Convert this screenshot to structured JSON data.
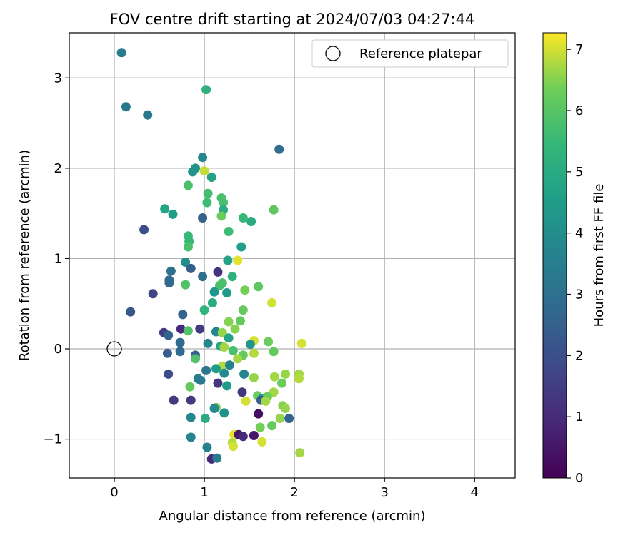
{
  "chart_data": {
    "type": "scatter",
    "title": "FOV centre drift starting at 2024/07/03 04:27:44",
    "xlabel": "Angular distance from reference (arcmin)",
    "ylabel": "Rotation from reference (arcmin)",
    "xlim": [
      -0.5,
      4.45
    ],
    "ylim": [
      -1.43,
      3.5
    ],
    "xticks": [
      0,
      1,
      2,
      3,
      4
    ],
    "yticks": [
      -1,
      0,
      1,
      2,
      3
    ],
    "xtick_labels": [
      "0",
      "1",
      "2",
      "3",
      "4"
    ],
    "ytick_labels": [
      "−1",
      "0",
      "1",
      "2",
      "3"
    ],
    "grid": true,
    "legend": {
      "placement": "top-right",
      "entries": [
        {
          "label": "Reference platepar",
          "marker": "open-circle"
        }
      ]
    },
    "reference_point": {
      "x": 0,
      "y": 0
    },
    "colorbar": {
      "label": "Hours from first FF file",
      "colormap": "viridis",
      "range": [
        0,
        7.27
      ],
      "ticks": [
        0,
        1,
        2,
        3,
        4,
        5,
        6,
        7
      ],
      "tick_labels": [
        "0",
        "1",
        "2",
        "3",
        "4",
        "5",
        "6",
        "7"
      ]
    },
    "points": [
      {
        "x": 0.08,
        "y": 3.28,
        "c": 3.4
      },
      {
        "x": 0.13,
        "y": 2.68,
        "c": 3.3
      },
      {
        "x": 0.37,
        "y": 2.59,
        "c": 3.3
      },
      {
        "x": 1.02,
        "y": 2.87,
        "c": 5.2
      },
      {
        "x": 1.83,
        "y": 2.21,
        "c": 2.9
      },
      {
        "x": 0.98,
        "y": 2.12,
        "c": 3.8
      },
      {
        "x": 0.9,
        "y": 2.0,
        "c": 4.2
      },
      {
        "x": 0.87,
        "y": 1.96,
        "c": 4.2
      },
      {
        "x": 1.0,
        "y": 1.97,
        "c": 6.9
      },
      {
        "x": 1.08,
        "y": 1.9,
        "c": 4.7
      },
      {
        "x": 0.82,
        "y": 1.81,
        "c": 5.8
      },
      {
        "x": 1.04,
        "y": 1.72,
        "c": 5.7
      },
      {
        "x": 1.19,
        "y": 1.67,
        "c": 5.8
      },
      {
        "x": 1.21,
        "y": 1.62,
        "c": 5.8
      },
      {
        "x": 1.03,
        "y": 1.62,
        "c": 5.6
      },
      {
        "x": 0.56,
        "y": 1.55,
        "c": 4.8
      },
      {
        "x": 1.21,
        "y": 1.54,
        "c": 5.0
      },
      {
        "x": 1.77,
        "y": 1.54,
        "c": 6.1
      },
      {
        "x": 0.65,
        "y": 1.49,
        "c": 4.5
      },
      {
        "x": 1.19,
        "y": 1.47,
        "c": 6.3
      },
      {
        "x": 0.98,
        "y": 1.45,
        "c": 2.5
      },
      {
        "x": 1.43,
        "y": 1.45,
        "c": 5.5
      },
      {
        "x": 1.52,
        "y": 1.41,
        "c": 5.0
      },
      {
        "x": 0.33,
        "y": 1.32,
        "c": 2.0
      },
      {
        "x": 1.27,
        "y": 1.3,
        "c": 5.6
      },
      {
        "x": 0.82,
        "y": 1.25,
        "c": 5.5
      },
      {
        "x": 0.83,
        "y": 1.19,
        "c": 5.5
      },
      {
        "x": 0.82,
        "y": 1.13,
        "c": 5.8
      },
      {
        "x": 1.41,
        "y": 1.13,
        "c": 4.6
      },
      {
        "x": 1.37,
        "y": 0.98,
        "c": 7.1
      },
      {
        "x": 1.26,
        "y": 0.98,
        "c": 4.7
      },
      {
        "x": 0.79,
        "y": 0.96,
        "c": 4.0
      },
      {
        "x": 0.85,
        "y": 0.89,
        "c": 2.5
      },
      {
        "x": 0.63,
        "y": 0.86,
        "c": 3.0
      },
      {
        "x": 1.15,
        "y": 0.85,
        "c": 1.2
      },
      {
        "x": 0.98,
        "y": 0.8,
        "c": 3.0
      },
      {
        "x": 1.31,
        "y": 0.8,
        "c": 5.2
      },
      {
        "x": 0.61,
        "y": 0.76,
        "c": 2.8
      },
      {
        "x": 0.61,
        "y": 0.73,
        "c": 2.8
      },
      {
        "x": 1.2,
        "y": 0.73,
        "c": 5.8
      },
      {
        "x": 1.17,
        "y": 0.7,
        "c": 5.8
      },
      {
        "x": 0.79,
        "y": 0.71,
        "c": 5.9
      },
      {
        "x": 1.6,
        "y": 0.69,
        "c": 6.1
      },
      {
        "x": 1.45,
        "y": 0.65,
        "c": 6.4
      },
      {
        "x": 1.11,
        "y": 0.63,
        "c": 4.3
      },
      {
        "x": 1.25,
        "y": 0.62,
        "c": 4.4
      },
      {
        "x": 0.43,
        "y": 0.61,
        "c": 1.7
      },
      {
        "x": 1.09,
        "y": 0.51,
        "c": 5.0
      },
      {
        "x": 1.75,
        "y": 0.51,
        "c": 7.0
      },
      {
        "x": 1.0,
        "y": 0.43,
        "c": 5.3
      },
      {
        "x": 1.43,
        "y": 0.43,
        "c": 6.2
      },
      {
        "x": 0.18,
        "y": 0.41,
        "c": 2.2
      },
      {
        "x": 0.76,
        "y": 0.38,
        "c": 2.6
      },
      {
        "x": 1.4,
        "y": 0.31,
        "c": 6.2
      },
      {
        "x": 1.27,
        "y": 0.3,
        "c": 6.5
      },
      {
        "x": 1.34,
        "y": 0.22,
        "c": 6.5
      },
      {
        "x": 0.74,
        "y": 0.22,
        "c": 1.0
      },
      {
        "x": 0.95,
        "y": 0.22,
        "c": 1.4
      },
      {
        "x": 0.82,
        "y": 0.2,
        "c": 5.9
      },
      {
        "x": 0.55,
        "y": 0.18,
        "c": 1.5
      },
      {
        "x": 1.13,
        "y": 0.19,
        "c": 3.8
      },
      {
        "x": 1.2,
        "y": 0.18,
        "c": 6.6
      },
      {
        "x": 0.6,
        "y": 0.15,
        "c": 2.6
      },
      {
        "x": 1.27,
        "y": 0.12,
        "c": 4.7
      },
      {
        "x": 1.55,
        "y": 0.09,
        "c": 7.0
      },
      {
        "x": 1.71,
        "y": 0.08,
        "c": 6.3
      },
      {
        "x": 0.73,
        "y": 0.07,
        "c": 2.8
      },
      {
        "x": 1.04,
        "y": 0.06,
        "c": 3.8
      },
      {
        "x": 1.51,
        "y": 0.05,
        "c": 4.3
      },
      {
        "x": 2.08,
        "y": 0.06,
        "c": 7.0
      },
      {
        "x": 1.18,
        "y": 0.03,
        "c": 4.8
      },
      {
        "x": 1.22,
        "y": 0.02,
        "c": 6.7
      },
      {
        "x": 1.32,
        "y": -0.02,
        "c": 5.8
      },
      {
        "x": 1.77,
        "y": -0.03,
        "c": 6.2
      },
      {
        "x": 0.73,
        "y": -0.03,
        "c": 2.8
      },
      {
        "x": 1.55,
        "y": -0.05,
        "c": 6.8
      },
      {
        "x": 0.59,
        "y": -0.05,
        "c": 2.4
      },
      {
        "x": 1.43,
        "y": -0.07,
        "c": 6.2
      },
      {
        "x": 0.9,
        "y": -0.07,
        "c": 2.5
      },
      {
        "x": 1.37,
        "y": -0.11,
        "c": 6.7
      },
      {
        "x": 0.9,
        "y": -0.11,
        "c": 5.9
      },
      {
        "x": 1.2,
        "y": -0.19,
        "c": 6.8
      },
      {
        "x": 1.28,
        "y": -0.18,
        "c": 3.6
      },
      {
        "x": 1.13,
        "y": -0.22,
        "c": 4.5
      },
      {
        "x": 1.02,
        "y": -0.24,
        "c": 3.2
      },
      {
        "x": 1.22,
        "y": -0.27,
        "c": 3.9
      },
      {
        "x": 1.44,
        "y": -0.28,
        "c": 3.8
      },
      {
        "x": 0.6,
        "y": -0.28,
        "c": 1.9
      },
      {
        "x": 1.9,
        "y": -0.28,
        "c": 6.6
      },
      {
        "x": 2.05,
        "y": -0.28,
        "c": 6.7
      },
      {
        "x": 1.78,
        "y": -0.31,
        "c": 6.7
      },
      {
        "x": 1.55,
        "y": -0.32,
        "c": 6.6
      },
      {
        "x": 2.05,
        "y": -0.33,
        "c": 6.8
      },
      {
        "x": 0.93,
        "y": -0.33,
        "c": 3.6
      },
      {
        "x": 0.96,
        "y": -0.35,
        "c": 3.4
      },
      {
        "x": 1.86,
        "y": -0.38,
        "c": 6.3
      },
      {
        "x": 1.15,
        "y": -0.38,
        "c": 1.3
      },
      {
        "x": 1.25,
        "y": -0.41,
        "c": 4.5
      },
      {
        "x": 0.84,
        "y": -0.42,
        "c": 6.2
      },
      {
        "x": 1.42,
        "y": -0.48,
        "c": 1.3
      },
      {
        "x": 1.77,
        "y": -0.48,
        "c": 6.7
      },
      {
        "x": 1.59,
        "y": -0.52,
        "c": 6.3
      },
      {
        "x": 1.64,
        "y": -0.55,
        "c": 4.5
      },
      {
        "x": 1.7,
        "y": -0.53,
        "c": 6.3
      },
      {
        "x": 1.63,
        "y": -0.57,
        "c": 2.4
      },
      {
        "x": 0.66,
        "y": -0.57,
        "c": 1.4
      },
      {
        "x": 0.85,
        "y": -0.57,
        "c": 1.4
      },
      {
        "x": 1.46,
        "y": -0.58,
        "c": 7.0
      },
      {
        "x": 1.68,
        "y": -0.58,
        "c": 6.7
      },
      {
        "x": 1.13,
        "y": -0.65,
        "c": 6.5
      },
      {
        "x": 1.11,
        "y": -0.66,
        "c": 3.9
      },
      {
        "x": 1.87,
        "y": -0.63,
        "c": 6.5
      },
      {
        "x": 1.9,
        "y": -0.66,
        "c": 6.6
      },
      {
        "x": 1.6,
        "y": -0.72,
        "c": 0.3
      },
      {
        "x": 1.22,
        "y": -0.71,
        "c": 4.1
      },
      {
        "x": 1.01,
        "y": -0.77,
        "c": 5.0
      },
      {
        "x": 1.84,
        "y": -0.77,
        "c": 6.6
      },
      {
        "x": 1.94,
        "y": -0.77,
        "c": 2.6
      },
      {
        "x": 0.85,
        "y": -0.76,
        "c": 3.8
      },
      {
        "x": 1.75,
        "y": -0.85,
        "c": 6.2
      },
      {
        "x": 1.62,
        "y": -0.87,
        "c": 6.4
      },
      {
        "x": 1.33,
        "y": -0.95,
        "c": 7.1
      },
      {
        "x": 1.38,
        "y": -0.95,
        "c": 0.5
      },
      {
        "x": 1.43,
        "y": -0.97,
        "c": 1.0
      },
      {
        "x": 1.55,
        "y": -0.96,
        "c": 0.5
      },
      {
        "x": 0.85,
        "y": -0.98,
        "c": 3.7
      },
      {
        "x": 1.64,
        "y": -1.03,
        "c": 7.0
      },
      {
        "x": 1.31,
        "y": -1.04,
        "c": 6.8
      },
      {
        "x": 1.32,
        "y": -1.08,
        "c": 7.0
      },
      {
        "x": 1.03,
        "y": -1.09,
        "c": 3.6
      },
      {
        "x": 2.06,
        "y": -1.15,
        "c": 6.7
      },
      {
        "x": 1.08,
        "y": -1.22,
        "c": 0.9
      },
      {
        "x": 1.14,
        "y": -1.21,
        "c": 3.4
      }
    ]
  }
}
